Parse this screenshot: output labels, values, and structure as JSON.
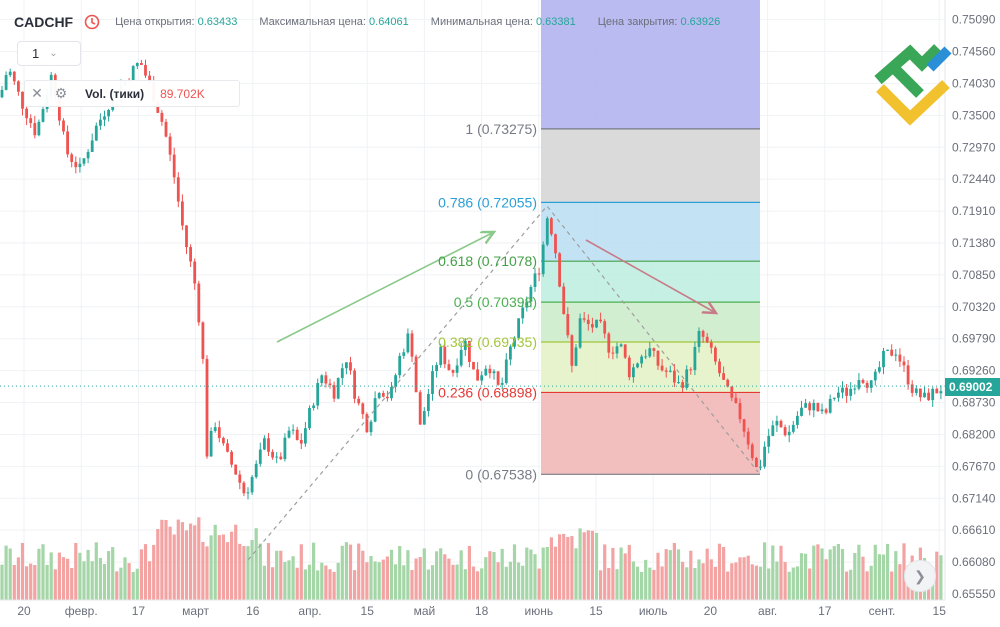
{
  "header": {
    "symbol": "CADCHF",
    "stats": [
      {
        "label": "Цена открытия:",
        "value": "0.63433"
      },
      {
        "label": "Максимальная цена:",
        "value": "0.64061"
      },
      {
        "label": "Минимальная цена:",
        "value": "0.63381"
      },
      {
        "label": "Цена закрытия:",
        "value": "0.63926"
      }
    ]
  },
  "interval": {
    "value": "1"
  },
  "volume_legend": {
    "name": "Vol. (тики)",
    "value": "89.702K"
  },
  "last_price": "0.69002",
  "colors": {
    "up": "#26a69a",
    "down": "#ef5350",
    "vol_up": "#a5d6a7",
    "vol_down": "#f4a3a3"
  },
  "chart_data": {
    "type": "candlestick",
    "y_axis": {
      "min": 0.6555,
      "max": 0.7515,
      "ticks": [
        "0.75090",
        "0.74560",
        "0.74030",
        "0.73500",
        "0.72970",
        "0.72440",
        "0.71910",
        "0.71380",
        "0.70850",
        "0.70320",
        "0.69790",
        "0.69260",
        "0.68730",
        "0.68200",
        "0.67670",
        "0.67140",
        "0.66610",
        "0.66080",
        "0.65550"
      ]
    },
    "x_axis": {
      "ticks": [
        "20",
        "февр.",
        "17",
        "март",
        "16",
        "апр.",
        "15",
        "май",
        "18",
        "июнь",
        "15",
        "июль",
        "20",
        "авг.",
        "17",
        "сент.",
        "15"
      ]
    },
    "fibonacci": {
      "levels": [
        {
          "label": "1 (0.73275)",
          "price": 0.73275,
          "color": "#787b86"
        },
        {
          "label": "0.786 (0.72055)",
          "price": 0.72055,
          "color": "#2a9fd6"
        },
        {
          "label": "0.618 (0.71078)",
          "price": 0.71078,
          "color": "#43a047"
        },
        {
          "label": "0.5 (0.70398)",
          "price": 0.70398,
          "color": "#4caf50"
        },
        {
          "label": "0.382 (0.69735)",
          "price": 0.69735,
          "color": "#a4c639"
        },
        {
          "label": "0.236 (0.68898)",
          "price": 0.68898,
          "color": "#e53935"
        },
        {
          "label": "0 (0.67538)",
          "price": 0.67538,
          "color": "#787b86"
        }
      ],
      "zone_colors": [
        "#b3b4ee",
        "#d6d6d6",
        "#bde0f4",
        "#bfeee0",
        "#cdeccc",
        "#e4f2c6",
        "#f2b7b7"
      ]
    },
    "price_path": [
      [
        0,
        0.738
      ],
      [
        8,
        0.743
      ],
      [
        22,
        0.737
      ],
      [
        36,
        0.732
      ],
      [
        52,
        0.742
      ],
      [
        66,
        0.729
      ],
      [
        80,
        0.726
      ],
      [
        96,
        0.733
      ],
      [
        112,
        0.738
      ],
      [
        126,
        0.741
      ],
      [
        140,
        0.744
      ],
      [
        152,
        0.739
      ],
      [
        164,
        0.733
      ],
      [
        174,
        0.725
      ],
      [
        184,
        0.715
      ],
      [
        194,
        0.708
      ],
      [
        200,
        0.7
      ],
      [
        203,
        0.694
      ],
      [
        207,
        0.679
      ],
      [
        215,
        0.684
      ],
      [
        225,
        0.679
      ],
      [
        235,
        0.676
      ],
      [
        245,
        0.672
      ],
      [
        255,
        0.676
      ],
      [
        265,
        0.681
      ],
      [
        278,
        0.677
      ],
      [
        290,
        0.683
      ],
      [
        300,
        0.68
      ],
      [
        312,
        0.687
      ],
      [
        322,
        0.692
      ],
      [
        334,
        0.689
      ],
      [
        346,
        0.695
      ],
      [
        356,
        0.688
      ],
      [
        368,
        0.683
      ],
      [
        378,
        0.69
      ],
      [
        390,
        0.688
      ],
      [
        400,
        0.695
      ],
      [
        410,
        0.699
      ],
      [
        420,
        0.683
      ],
      [
        430,
        0.69
      ],
      [
        440,
        0.696
      ],
      [
        452,
        0.692
      ],
      [
        464,
        0.698
      ],
      [
        476,
        0.691
      ],
      [
        488,
        0.694
      ],
      [
        500,
        0.689
      ],
      [
        510,
        0.696
      ],
      [
        520,
        0.701
      ],
      [
        530,
        0.706
      ],
      [
        540,
        0.71
      ],
      [
        548,
        0.719
      ],
      [
        556,
        0.712
      ],
      [
        564,
        0.702
      ],
      [
        572,
        0.693
      ],
      [
        580,
        0.701
      ],
      [
        590,
        0.7
      ],
      [
        600,
        0.7
      ],
      [
        610,
        0.696
      ],
      [
        620,
        0.697
      ],
      [
        630,
        0.692
      ],
      [
        640,
        0.695
      ],
      [
        650,
        0.696
      ],
      [
        660,
        0.693
      ],
      [
        670,
        0.692
      ],
      [
        680,
        0.69
      ],
      [
        690,
        0.693
      ],
      [
        700,
        0.699
      ],
      [
        710,
        0.696
      ],
      [
        720,
        0.692
      ],
      [
        730,
        0.688
      ],
      [
        740,
        0.685
      ],
      [
        750,
        0.68
      ],
      [
        758,
        0.6754
      ],
      [
        766,
        0.681
      ],
      [
        776,
        0.684
      ],
      [
        788,
        0.682
      ],
      [
        800,
        0.686
      ],
      [
        812,
        0.687
      ],
      [
        824,
        0.685
      ],
      [
        836,
        0.689
      ],
      [
        848,
        0.689
      ],
      [
        860,
        0.692
      ],
      [
        872,
        0.69
      ],
      [
        884,
        0.695
      ],
      [
        896,
        0.696
      ],
      [
        906,
        0.692
      ],
      [
        914,
        0.689
      ],
      [
        924,
        0.688
      ],
      [
        934,
        0.689
      ],
      [
        944,
        0.69
      ]
    ]
  }
}
